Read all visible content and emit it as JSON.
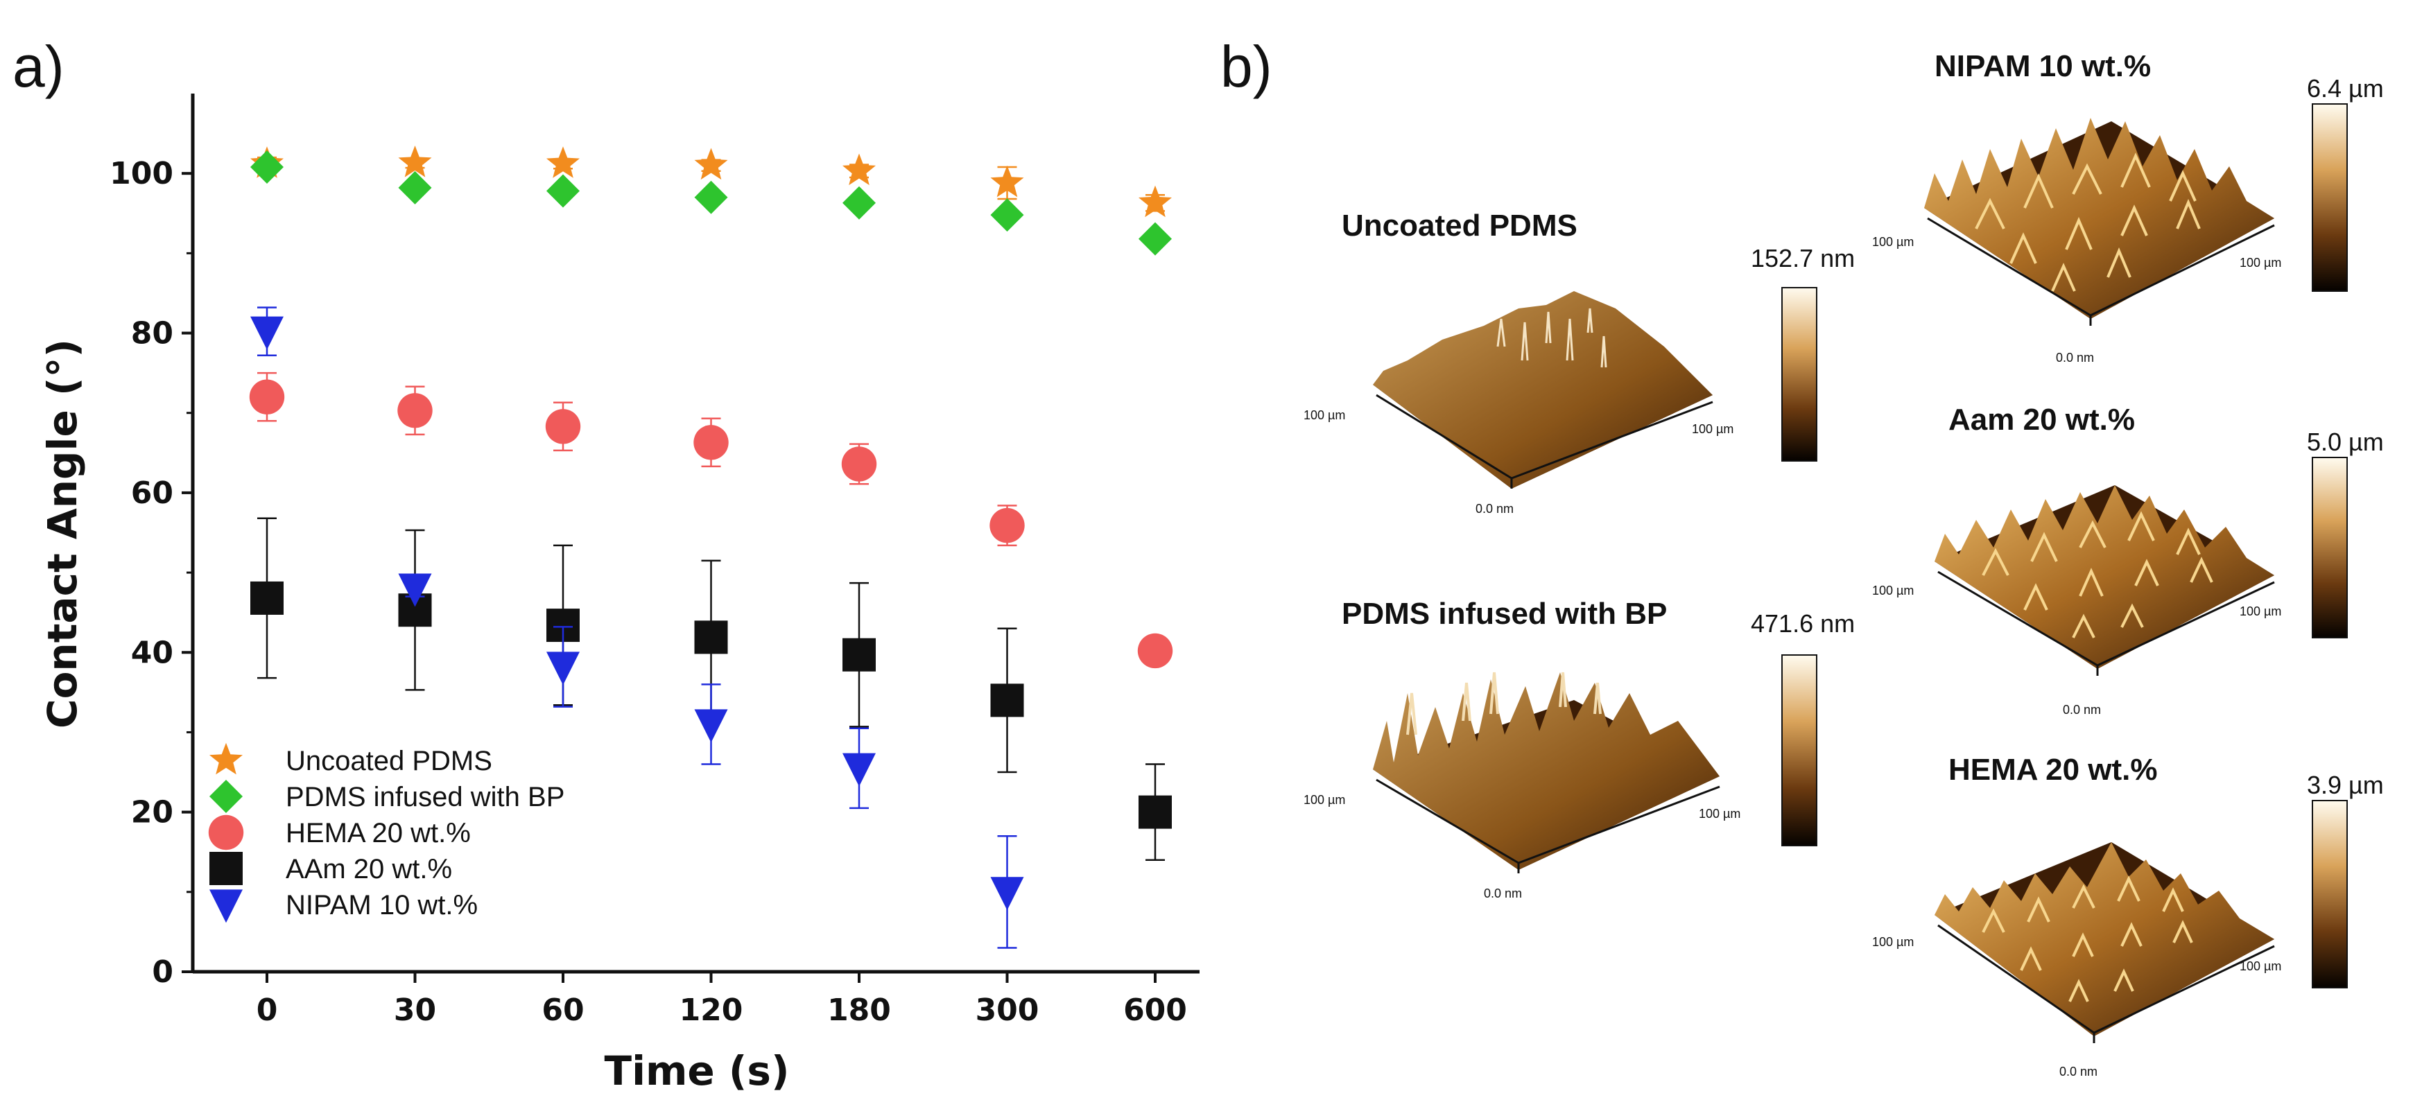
{
  "panel_labels": {
    "a": "a)",
    "b": "b)"
  },
  "chart_data": {
    "type": "scatter",
    "title": "",
    "xlabel": "Time (s)",
    "ylabel": "Contact Angle (°)",
    "categories": [
      "0",
      "30",
      "60",
      "120",
      "180",
      "300",
      "600"
    ],
    "ylim": [
      0,
      110
    ],
    "yticks": [
      "0",
      "20",
      "40",
      "60",
      "80",
      "100"
    ],
    "legend_position": "bottom-left",
    "series": [
      {
        "name": "Uncoated PDMS",
        "marker": "star",
        "color": "#f28c1e",
        "values": [
          101.2,
          101.3,
          101.2,
          101.0,
          100.3,
          98.8,
          96.3
        ],
        "errors": [
          0.8,
          0.6,
          0.6,
          0.7,
          0.8,
          2.0,
          1.0
        ]
      },
      {
        "name": "PDMS infused with BP",
        "marker": "diamond",
        "color": "#2ec42e",
        "values": [
          100.8,
          98.2,
          97.8,
          97.0,
          96.3,
          94.8,
          91.8
        ],
        "errors": [
          0.6,
          0.6,
          0.6,
          0.6,
          0.6,
          0.6,
          0.6
        ]
      },
      {
        "name": "HEMA 20 wt.%",
        "marker": "circle",
        "color": "#f05a5a",
        "values": [
          72.0,
          70.3,
          68.3,
          66.3,
          63.6,
          55.9,
          40.2
        ],
        "errors": [
          3.0,
          3.0,
          3.0,
          3.0,
          2.5,
          2.5,
          0.8
        ]
      },
      {
        "name": "AAm 20 wt.%",
        "marker": "square",
        "color": "#111111",
        "values": [
          46.8,
          45.3,
          43.4,
          41.9,
          39.7,
          34.0,
          20.0
        ],
        "errors": [
          10.0,
          10.0,
          10.0,
          9.6,
          9.0,
          9.0,
          6.0
        ]
      },
      {
        "name": "NIPAM 10 wt.%",
        "marker": "triangle-down",
        "color": "#1f2bdc",
        "values": [
          80.2,
          48.0,
          38.2,
          31.0,
          25.5,
          10.0,
          null
        ],
        "errors": [
          3.0,
          1.0,
          5.0,
          5.0,
          5.0,
          7.0,
          null
        ]
      }
    ]
  },
  "afm_panels": [
    {
      "title": "Uncoated PDMS",
      "scale_max": "152.7 nm",
      "axis_left": "100 µm",
      "axis_right": "100 µm",
      "axis_bottom": "0.0 nm"
    },
    {
      "title": "PDMS infused with BP",
      "scale_max": "471.6 nm",
      "axis_left": "100 µm",
      "axis_right": "100 µm",
      "axis_bottom": "0.0 nm"
    },
    {
      "title": "NIPAM 10 wt.%",
      "scale_max": "6.4 µm",
      "axis_left": "100 µm",
      "axis_right": "100 µm",
      "axis_bottom": "0.0 nm"
    },
    {
      "title": "Aam 20 wt.%",
      "scale_max": "5.0 µm",
      "axis_left": "100 µm",
      "axis_right": "100 µm",
      "axis_bottom": "0.0 nm"
    },
    {
      "title": "HEMA 20 wt.%",
      "scale_max": "3.9 µm",
      "axis_left": "100 µm",
      "axis_right": "100 µm",
      "axis_bottom": "0.0 nm"
    }
  ],
  "colors": {
    "afm_light": "#fff8e6",
    "afm_mid": "#b8782a",
    "afm_dark": "#1a0a00"
  }
}
